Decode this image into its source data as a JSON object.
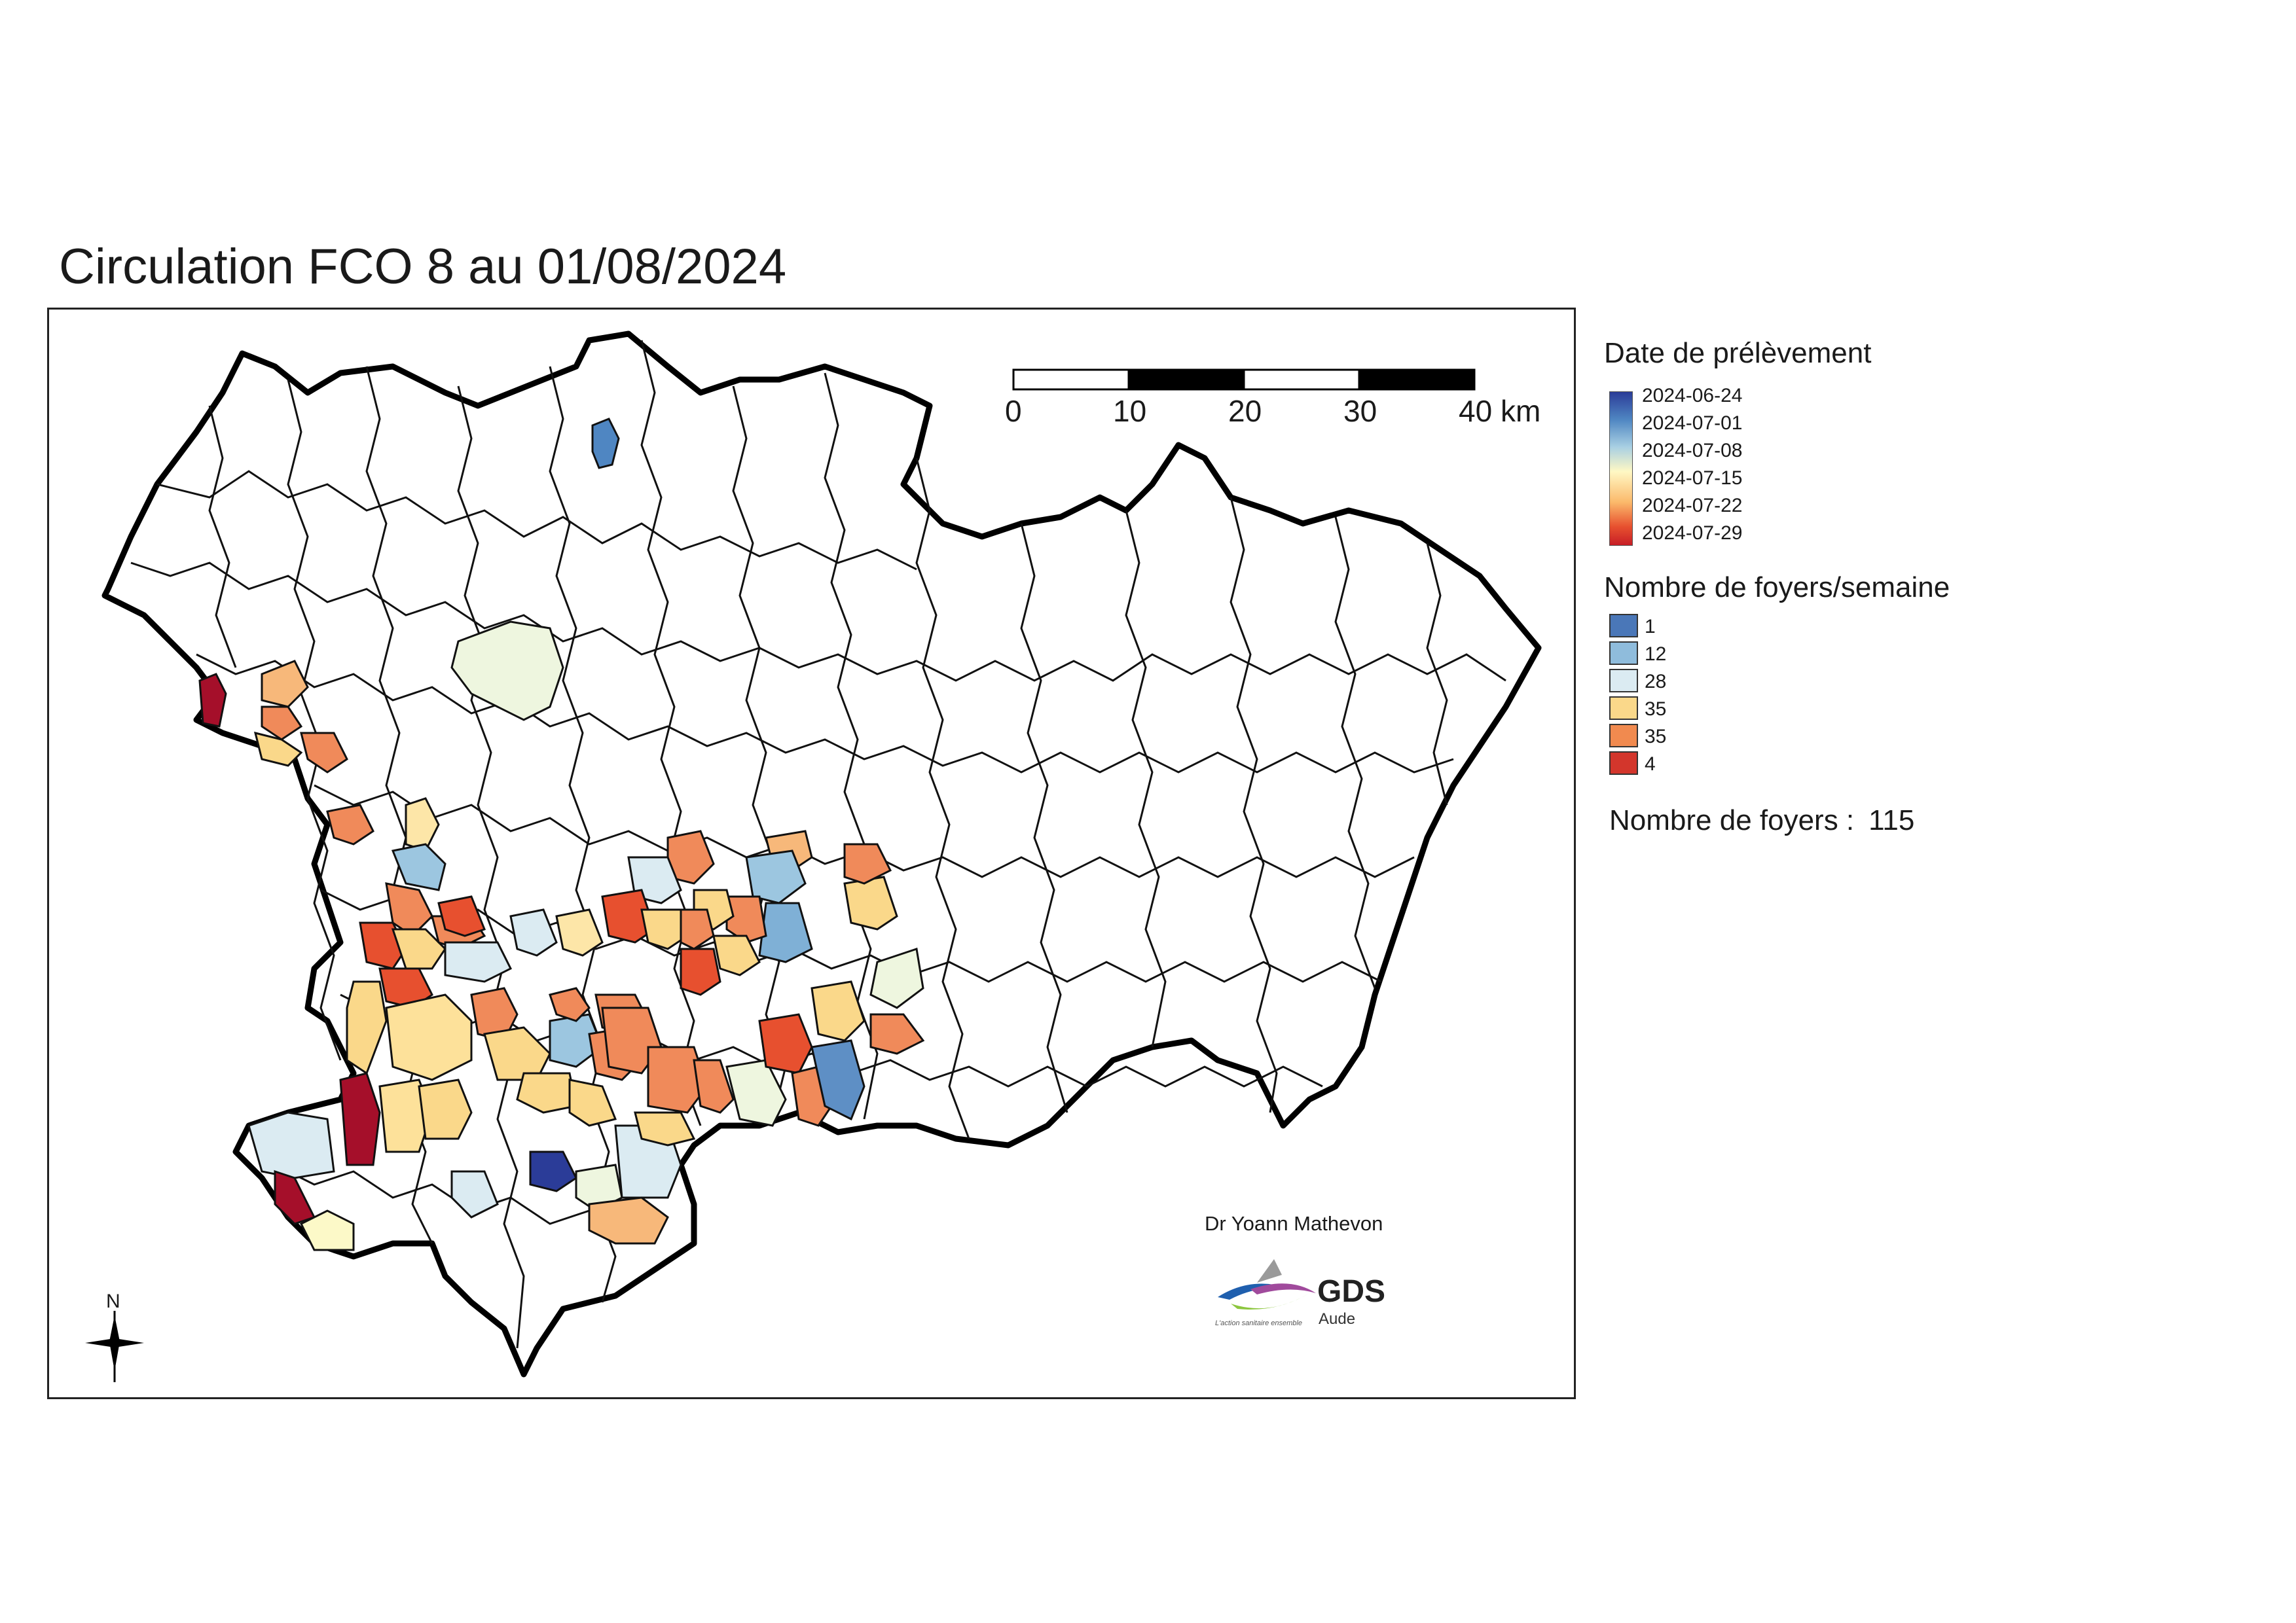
{
  "title": "Circulation FCO 8 au 01/08/2024",
  "scale_bar": {
    "ticks": [
      "0",
      "10",
      "20",
      "30",
      "40 km"
    ]
  },
  "legend_date": {
    "title": "Date de prélèvement",
    "labels": [
      "2024-06-24",
      "2024-07-01",
      "2024-07-08",
      "2024-07-15",
      "2024-07-22",
      "2024-07-29"
    ],
    "colors": [
      "#2b3c98",
      "#4f86c2",
      "#a9d0e3",
      "#fff8c4",
      "#fbb96b",
      "#e7502f",
      "#c71e26"
    ]
  },
  "legend_foyers": {
    "title": "Nombre de foyers/semaine",
    "items": [
      {
        "label": "1",
        "color": "#4a77b8"
      },
      {
        "label": "12",
        "color": "#8fbcdc"
      },
      {
        "label": "28",
        "color": "#dbebf2"
      },
      {
        "label": "35",
        "color": "#fad88a"
      },
      {
        "label": "35",
        "color": "#f18a4f"
      },
      {
        "label": "4",
        "color": "#d3362c"
      }
    ]
  },
  "total": {
    "label": "Nombre de foyers :",
    "value": "115"
  },
  "author": "Dr Yoann Mathevon",
  "logo": {
    "name": "GDS",
    "sub": "Aude",
    "tagline": "L'action sanitaire ensemble"
  },
  "north": "N",
  "map": {
    "department": "Aude",
    "outline_color": "#000000",
    "commune_fill_default": "#ffffff"
  }
}
